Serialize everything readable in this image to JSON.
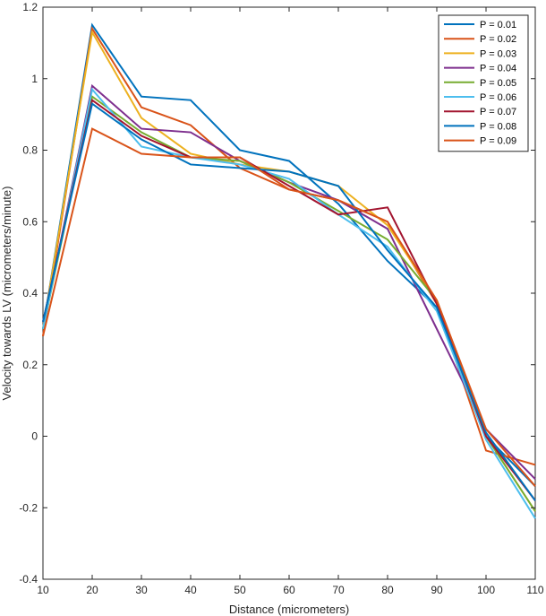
{
  "chart_data": {
    "type": "line",
    "xlabel": "Distance (micrometers)",
    "ylabel": "Velocity towards LV (micrometers/minute)",
    "xlim": [
      10,
      110
    ],
    "ylim": [
      -0.4,
      1.2
    ],
    "x_ticks": [
      "10",
      "20",
      "30",
      "40",
      "50",
      "60",
      "70",
      "80",
      "90",
      "100",
      "110"
    ],
    "y_ticks": [
      "-0.4",
      "-0.2",
      "0",
      "0.2",
      "0.4",
      "0.6",
      "0.8",
      "1",
      "1.2"
    ],
    "grid": false,
    "legend_position": "top-right",
    "x": [
      10,
      20,
      30,
      40,
      50,
      60,
      70,
      80,
      90,
      100,
      110
    ],
    "series": [
      {
        "name": "P = 0.01",
        "color": "#0072BD",
        "values": [
          0.3,
          1.15,
          0.95,
          0.94,
          0.8,
          0.77,
          0.65,
          0.49,
          0.36,
          0.0,
          -0.14
        ]
      },
      {
        "name": "P = 0.02",
        "color": "#D95319",
        "values": [
          0.28,
          1.14,
          0.92,
          0.87,
          0.75,
          0.69,
          0.66,
          0.6,
          0.37,
          -0.04,
          -0.08
        ]
      },
      {
        "name": "P = 0.03",
        "color": "#EDB120",
        "values": [
          0.3,
          1.13,
          0.89,
          0.79,
          0.76,
          0.74,
          0.7,
          0.59,
          0.38,
          0.0,
          -0.21
        ]
      },
      {
        "name": "P = 0.04",
        "color": "#7E2F8E",
        "values": [
          0.3,
          0.98,
          0.86,
          0.85,
          0.77,
          0.71,
          0.66,
          0.58,
          0.3,
          0.02,
          -0.12
        ]
      },
      {
        "name": "P = 0.05",
        "color": "#77AC30",
        "values": [
          0.3,
          0.95,
          0.85,
          0.78,
          0.77,
          0.71,
          0.63,
          0.55,
          0.38,
          0.0,
          -0.21
        ]
      },
      {
        "name": "P = 0.06",
        "color": "#4DBEEE",
        "values": [
          0.3,
          0.97,
          0.81,
          0.78,
          0.76,
          0.72,
          0.62,
          0.53,
          0.35,
          -0.01,
          -0.23
        ]
      },
      {
        "name": "P = 0.07",
        "color": "#A2142F",
        "values": [
          0.32,
          0.94,
          0.84,
          0.78,
          0.78,
          0.7,
          0.62,
          0.64,
          0.37,
          0.0,
          -0.18
        ]
      },
      {
        "name": "P = 0.08",
        "color": "#0072BD",
        "values": [
          0.32,
          0.93,
          0.83,
          0.76,
          0.75,
          0.74,
          0.7,
          0.52,
          0.36,
          0.01,
          -0.18
        ]
      },
      {
        "name": "P = 0.09",
        "color": "#D95319",
        "values": [
          0.28,
          0.86,
          0.79,
          0.78,
          0.78,
          0.69,
          0.66,
          0.6,
          0.38,
          0.02,
          -0.14
        ]
      }
    ]
  }
}
